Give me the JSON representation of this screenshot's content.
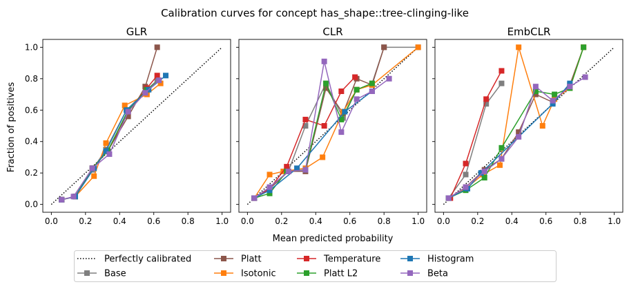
{
  "figure": {
    "suptitle": "Calibration curves for concept has_shape::tree-clinging-like",
    "xlabel": "Mean predicted probability",
    "ylabel": "Fraction of positives"
  },
  "legend": {
    "placement": "bottom-center",
    "entries": [
      {
        "key": "perfect",
        "label": "Perfectly calibrated",
        "color": "#000000",
        "style": "dotted"
      },
      {
        "key": "base",
        "label": "Base",
        "color": "#7f7f7f",
        "marker": "square"
      },
      {
        "key": "platt",
        "label": "Platt",
        "color": "#8c564b",
        "marker": "square"
      },
      {
        "key": "isotonic",
        "label": "Isotonic",
        "color": "#ff7f0e",
        "marker": "square"
      },
      {
        "key": "temperature",
        "label": "Temperature",
        "color": "#d62728",
        "marker": "square"
      },
      {
        "key": "plattl2",
        "label": "Platt L2",
        "color": "#2ca02c",
        "marker": "square"
      },
      {
        "key": "histogram",
        "label": "Histogram",
        "color": "#1f77b4",
        "marker": "square"
      },
      {
        "key": "beta",
        "label": "Beta",
        "color": "#9467bd",
        "marker": "square"
      }
    ]
  },
  "chart_data": [
    {
      "type": "line",
      "title": "GLR",
      "xlim": [
        -0.05,
        1.05
      ],
      "ylim": [
        -0.05,
        1.05
      ],
      "xticks": [
        "0.0",
        "0.2",
        "0.4",
        "0.6",
        "0.8",
        "1.0"
      ],
      "yticks": [
        "0.0",
        "0.2",
        "0.4",
        "0.6",
        "0.8",
        "1.0"
      ],
      "grid": false,
      "series": [
        {
          "key": "base",
          "name": "Base",
          "color": "#7f7f7f",
          "points": [
            [
              0.06,
              0.03
            ],
            [
              0.14,
              0.05
            ],
            [
              0.24,
              0.22
            ],
            [
              0.32,
              0.35
            ],
            [
              0.44,
              0.6
            ],
            [
              0.56,
              0.73
            ],
            [
              0.62,
              0.79
            ]
          ]
        },
        {
          "key": "platt",
          "name": "Platt",
          "color": "#8c564b",
          "points": [
            [
              0.06,
              0.03
            ],
            [
              0.14,
              0.05
            ],
            [
              0.24,
              0.23
            ],
            [
              0.33,
              0.34
            ],
            [
              0.45,
              0.56
            ],
            [
              0.55,
              0.75
            ],
            [
              0.62,
              1.0
            ]
          ]
        },
        {
          "key": "isotonic",
          "name": "Isotonic",
          "color": "#ff7f0e",
          "points": [
            [
              0.06,
              0.03
            ],
            [
              0.14,
              0.05
            ],
            [
              0.25,
              0.18
            ],
            [
              0.32,
              0.39
            ],
            [
              0.43,
              0.63
            ],
            [
              0.56,
              0.7
            ],
            [
              0.64,
              0.77
            ]
          ]
        },
        {
          "key": "temperature",
          "name": "Temperature",
          "color": "#d62728",
          "points": [
            [
              0.06,
              0.03
            ],
            [
              0.14,
              0.05
            ],
            [
              0.24,
              0.23
            ],
            [
              0.33,
              0.34
            ],
            [
              0.45,
              0.59
            ],
            [
              0.56,
              0.74
            ],
            [
              0.62,
              0.82
            ]
          ]
        },
        {
          "key": "plattl2",
          "name": "Platt L2",
          "color": "#2ca02c",
          "points": [
            [
              0.06,
              0.03
            ],
            [
              0.14,
              0.05
            ],
            [
              0.24,
              0.23
            ],
            [
              0.33,
              0.34
            ],
            [
              0.45,
              0.6
            ],
            [
              0.56,
              0.73
            ],
            [
              0.63,
              0.79
            ]
          ]
        },
        {
          "key": "histogram",
          "name": "Histogram",
          "color": "#1f77b4",
          "points": [
            [
              0.06,
              0.03
            ],
            [
              0.14,
              0.05
            ],
            [
              0.25,
              0.23
            ],
            [
              0.32,
              0.34
            ],
            [
              0.44,
              0.6
            ],
            [
              0.57,
              0.73
            ],
            [
              0.67,
              0.82
            ]
          ]
        },
        {
          "key": "beta",
          "name": "Beta",
          "color": "#9467bd",
          "points": [
            [
              0.06,
              0.03
            ],
            [
              0.13,
              0.05
            ],
            [
              0.24,
              0.23
            ],
            [
              0.34,
              0.32
            ],
            [
              0.45,
              0.59
            ],
            [
              0.55,
              0.71
            ],
            [
              0.63,
              0.79
            ]
          ]
        }
      ]
    },
    {
      "type": "line",
      "title": "CLR",
      "xlim": [
        -0.05,
        1.05
      ],
      "ylim": [
        -0.05,
        1.05
      ],
      "xticks": [
        "0.0",
        "0.2",
        "0.4",
        "0.6",
        "0.8",
        "1.0"
      ],
      "yticks": [
        "0.0",
        "0.2",
        "0.4",
        "0.6",
        "0.8",
        "1.0"
      ],
      "grid": false,
      "series": [
        {
          "key": "base",
          "name": "Base",
          "color": "#7f7f7f",
          "points": [
            [
              0.04,
              0.04
            ],
            [
              0.13,
              0.1
            ],
            [
              0.24,
              0.21
            ],
            [
              0.34,
              0.5
            ],
            [
              0.46,
              0.77
            ],
            [
              0.56,
              0.55
            ],
            [
              0.64,
              0.73
            ],
            [
              0.73,
              0.77
            ],
            [
              0.8,
              1.0
            ],
            [
              1.0,
              1.0
            ]
          ]
        },
        {
          "key": "platt",
          "name": "Platt",
          "color": "#8c564b",
          "points": [
            [
              0.04,
              0.04
            ],
            [
              0.13,
              0.1
            ],
            [
              0.24,
              0.21
            ],
            [
              0.34,
              0.21
            ],
            [
              0.46,
              0.74
            ],
            [
              0.56,
              0.58
            ],
            [
              0.64,
              0.8
            ],
            [
              0.73,
              0.76
            ],
            [
              0.8,
              1.0
            ]
          ]
        },
        {
          "key": "isotonic",
          "name": "Isotonic",
          "color": "#ff7f0e",
          "points": [
            [
              0.04,
              0.04
            ],
            [
              0.13,
              0.19
            ],
            [
              0.21,
              0.21
            ],
            [
              0.34,
              0.23
            ],
            [
              0.44,
              0.3
            ],
            [
              0.56,
              0.59
            ],
            [
              0.64,
              0.73
            ],
            [
              0.73,
              0.76
            ],
            [
              1.0,
              1.0
            ]
          ]
        },
        {
          "key": "temperature",
          "name": "Temperature",
          "color": "#d62728",
          "points": [
            [
              0.04,
              0.04
            ],
            [
              0.13,
              0.1
            ],
            [
              0.23,
              0.24
            ],
            [
              0.34,
              0.54
            ],
            [
              0.45,
              0.5
            ],
            [
              0.55,
              0.72
            ],
            [
              0.63,
              0.81
            ]
          ]
        },
        {
          "key": "plattl2",
          "name": "Platt L2",
          "color": "#2ca02c",
          "points": [
            [
              0.04,
              0.04
            ],
            [
              0.13,
              0.07
            ],
            [
              0.23,
              0.21
            ],
            [
              0.34,
              0.22
            ],
            [
              0.46,
              0.77
            ],
            [
              0.55,
              0.54
            ],
            [
              0.64,
              0.73
            ],
            [
              0.73,
              0.77
            ]
          ]
        },
        {
          "key": "histogram",
          "name": "Histogram",
          "color": "#1f77b4",
          "points": [
            [
              0.04,
              0.04
            ],
            [
              0.13,
              0.09
            ],
            [
              0.29,
              0.23
            ],
            [
              0.57,
              0.59
            ],
            [
              0.73,
              0.72
            ]
          ]
        },
        {
          "key": "beta",
          "name": "Beta",
          "color": "#9467bd",
          "points": [
            [
              0.04,
              0.04
            ],
            [
              0.13,
              0.11
            ],
            [
              0.24,
              0.21
            ],
            [
              0.34,
              0.22
            ],
            [
              0.45,
              0.91
            ],
            [
              0.55,
              0.46
            ],
            [
              0.64,
              0.67
            ],
            [
              0.73,
              0.72
            ],
            [
              0.83,
              0.8
            ]
          ]
        }
      ]
    },
    {
      "type": "line",
      "title": "EmbCLR",
      "xlim": [
        -0.05,
        1.05
      ],
      "ylim": [
        -0.05,
        1.05
      ],
      "xticks": [
        "0.0",
        "0.2",
        "0.4",
        "0.6",
        "0.8",
        "1.0"
      ],
      "yticks": [
        "0.0",
        "0.2",
        "0.4",
        "0.6",
        "0.8",
        "1.0"
      ],
      "grid": false,
      "series": [
        {
          "key": "base",
          "name": "Base",
          "color": "#7f7f7f",
          "points": [
            [
              0.03,
              0.04
            ],
            [
              0.13,
              0.19
            ],
            [
              0.25,
              0.64
            ],
            [
              0.34,
              0.77
            ]
          ]
        },
        {
          "key": "platt",
          "name": "Platt",
          "color": "#8c564b",
          "points": [
            [
              0.03,
              0.04
            ],
            [
              0.13,
              0.11
            ],
            [
              0.24,
              0.22
            ],
            [
              0.34,
              0.29
            ],
            [
              0.44,
              0.46
            ],
            [
              0.54,
              0.7
            ],
            [
              0.64,
              0.65
            ],
            [
              0.74,
              0.76
            ],
            [
              0.82,
              1.0
            ]
          ]
        },
        {
          "key": "isotonic",
          "name": "Isotonic",
          "color": "#ff7f0e",
          "points": [
            [
              0.03,
              0.04
            ],
            [
              0.13,
              0.1
            ],
            [
              0.23,
              0.19
            ],
            [
              0.33,
              0.25
            ],
            [
              0.44,
              1.0
            ],
            [
              0.58,
              0.5
            ],
            [
              0.65,
              0.67
            ],
            [
              0.74,
              0.74
            ],
            [
              0.82,
              1.0
            ]
          ]
        },
        {
          "key": "temperature",
          "name": "Temperature",
          "color": "#d62728",
          "points": [
            [
              0.04,
              0.04
            ],
            [
              0.13,
              0.26
            ],
            [
              0.25,
              0.67
            ],
            [
              0.34,
              0.85
            ]
          ]
        },
        {
          "key": "plattl2",
          "name": "Platt L2",
          "color": "#2ca02c",
          "points": [
            [
              0.03,
              0.04
            ],
            [
              0.13,
              0.09
            ],
            [
              0.24,
              0.17
            ],
            [
              0.34,
              0.36
            ],
            [
              0.54,
              0.72
            ],
            [
              0.65,
              0.7
            ],
            [
              0.74,
              0.74
            ],
            [
              0.82,
              1.0
            ]
          ]
        },
        {
          "key": "histogram",
          "name": "Histogram",
          "color": "#1f77b4",
          "points": [
            [
              0.03,
              0.04
            ],
            [
              0.14,
              0.1
            ],
            [
              0.22,
              0.2
            ],
            [
              0.64,
              0.64
            ],
            [
              0.74,
              0.77
            ]
          ]
        },
        {
          "key": "beta",
          "name": "Beta",
          "color": "#9467bd",
          "points": [
            [
              0.03,
              0.04
            ],
            [
              0.13,
              0.11
            ],
            [
              0.24,
              0.21
            ],
            [
              0.34,
              0.29
            ],
            [
              0.44,
              0.43
            ],
            [
              0.54,
              0.75
            ],
            [
              0.64,
              0.66
            ],
            [
              0.74,
              0.75
            ],
            [
              0.83,
              0.81
            ]
          ]
        }
      ]
    }
  ]
}
